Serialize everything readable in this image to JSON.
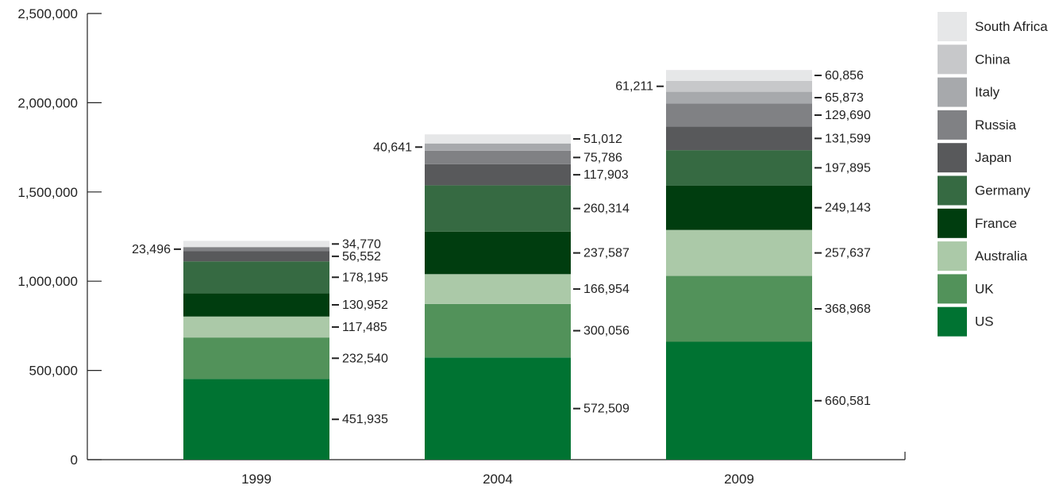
{
  "chart_data": {
    "type": "bar",
    "stacked": true,
    "categories": [
      "1999",
      "2004",
      "2009"
    ],
    "ylim": [
      0,
      2500000
    ],
    "yticks": [
      "0",
      "500,000",
      "1,000,000",
      "1,500,000",
      "2,000,000",
      "2,500,000"
    ],
    "ytick_values": [
      0,
      500000,
      1000000,
      1500000,
      2000000,
      2500000
    ],
    "grid": false,
    "legend_position": "right",
    "series": [
      {
        "name": "US",
        "color": "#007332",
        "values": [
          451935,
          572509,
          660581
        ],
        "labels": [
          "451,935",
          "572,509",
          "660,581"
        ],
        "label_side": [
          "right",
          "right",
          "right"
        ]
      },
      {
        "name": "UK",
        "color": "#52925a",
        "values": [
          232540,
          300056,
          368968
        ],
        "labels": [
          "232,540",
          "300,056",
          "368,968"
        ],
        "label_side": [
          "right",
          "right",
          "right"
        ]
      },
      {
        "name": "Australia",
        "color": "#abc9a8",
        "values": [
          117485,
          166954,
          257637
        ],
        "labels": [
          "117,485",
          "166,954",
          "257,637"
        ],
        "label_side": [
          "right",
          "right",
          "right"
        ]
      },
      {
        "name": "France",
        "color": "#003d0f",
        "values": [
          130952,
          237587,
          249143
        ],
        "labels": [
          "130,952",
          "237,587",
          "249,143"
        ],
        "label_side": [
          "right",
          "right",
          "right"
        ]
      },
      {
        "name": "Germany",
        "color": "#366a42",
        "values": [
          178195,
          260314,
          197895
        ],
        "labels": [
          "178,195",
          "260,314",
          "197,895"
        ],
        "label_side": [
          "right",
          "right",
          "right"
        ]
      },
      {
        "name": "Japan",
        "color": "#58595b",
        "values": [
          56552,
          117903,
          131599
        ],
        "labels": [
          "56,552",
          "117,903",
          "131,599"
        ],
        "label_side": [
          "right",
          "right",
          "right"
        ]
      },
      {
        "name": "Russia",
        "color": "#808184",
        "values": [
          23496,
          75786,
          129690
        ],
        "labels": [
          "23,496",
          "75,786",
          "129,690"
        ],
        "label_side": [
          "left",
          "right",
          "right"
        ]
      },
      {
        "name": "Italy",
        "color": "#a7a9ac",
        "values": [
          null,
          40641,
          65873
        ],
        "labels": [
          "",
          "40,641",
          "65,873"
        ],
        "label_side": [
          "",
          "left",
          "right"
        ]
      },
      {
        "name": "China",
        "color": "#c7c8ca",
        "values": [
          null,
          null,
          61211
        ],
        "labels": [
          "",
          "",
          "61,211"
        ],
        "label_side": [
          "",
          "",
          "left"
        ]
      },
      {
        "name": "South Africa",
        "color": "#e6e7e8",
        "values": [
          34770,
          51012,
          60856
        ],
        "labels": [
          "34,770",
          "51,012",
          "60,856"
        ],
        "label_side": [
          "right",
          "right",
          "right"
        ]
      }
    ],
    "legend_order": [
      "South Africa",
      "China",
      "Italy",
      "Russia",
      "Japan",
      "Germany",
      "France",
      "Australia",
      "UK",
      "US"
    ]
  }
}
